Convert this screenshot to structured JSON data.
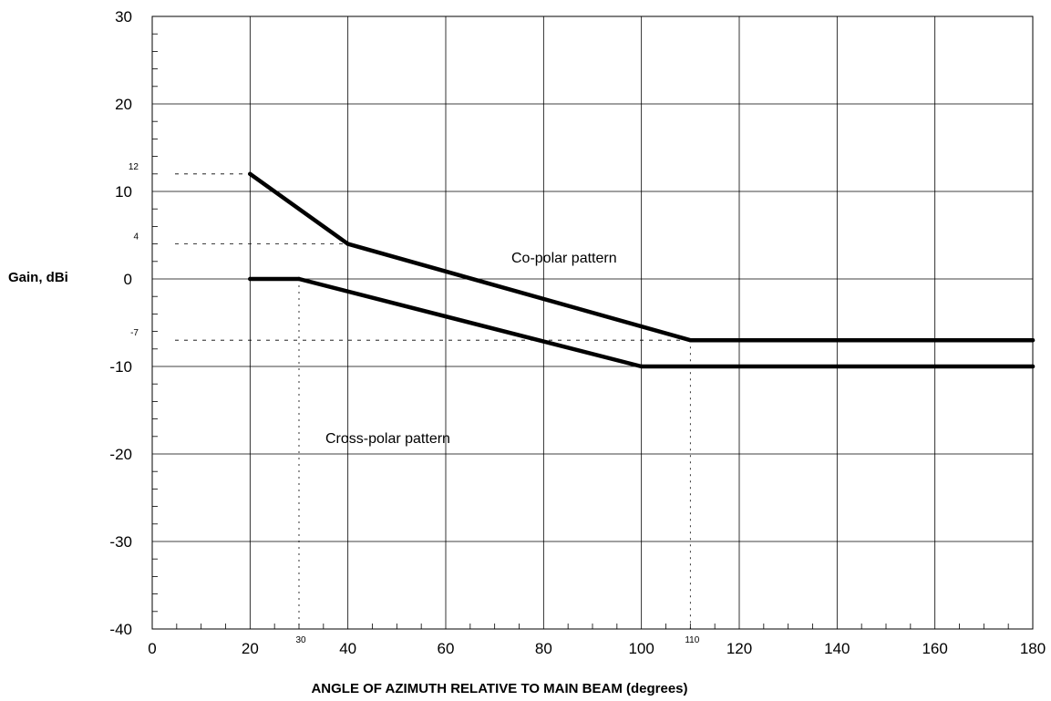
{
  "chart_data": {
    "type": "line",
    "xlabel": "ANGLE OF AZIMUTH RELATIVE TO MAIN BEAM (degrees)",
    "ylabel": "Gain, dBi",
    "xlim": [
      0,
      180
    ],
    "ylim": [
      -40,
      30
    ],
    "x_ticks": [
      "0",
      "20",
      "40",
      "60",
      "80",
      "100",
      "120",
      "140",
      "160",
      "180"
    ],
    "y_ticks": [
      "-40",
      "-30",
      "-20",
      "-10",
      "0",
      "10",
      "20",
      "30"
    ],
    "grid": true,
    "series": [
      {
        "name": "Co-polar pattern",
        "x": [
          20,
          40,
          110,
          180
        ],
        "y": [
          12,
          4,
          -7,
          -7
        ]
      },
      {
        "name": "Cross-polar pattern",
        "x": [
          20,
          30,
          100,
          180
        ],
        "y": [
          0,
          0,
          -10,
          -10
        ]
      }
    ],
    "reference_lines": {
      "y": [
        {
          "value": 12,
          "label": "12",
          "to_x": 20
        },
        {
          "value": 4,
          "label": "4",
          "to_x": 40
        },
        {
          "value": -7,
          "label": "-7",
          "to_x": 110
        }
      ],
      "x": [
        {
          "value": 30,
          "label": "30",
          "from_y": 0
        },
        {
          "value": 110,
          "label": "110",
          "from_y": -7
        }
      ]
    }
  }
}
